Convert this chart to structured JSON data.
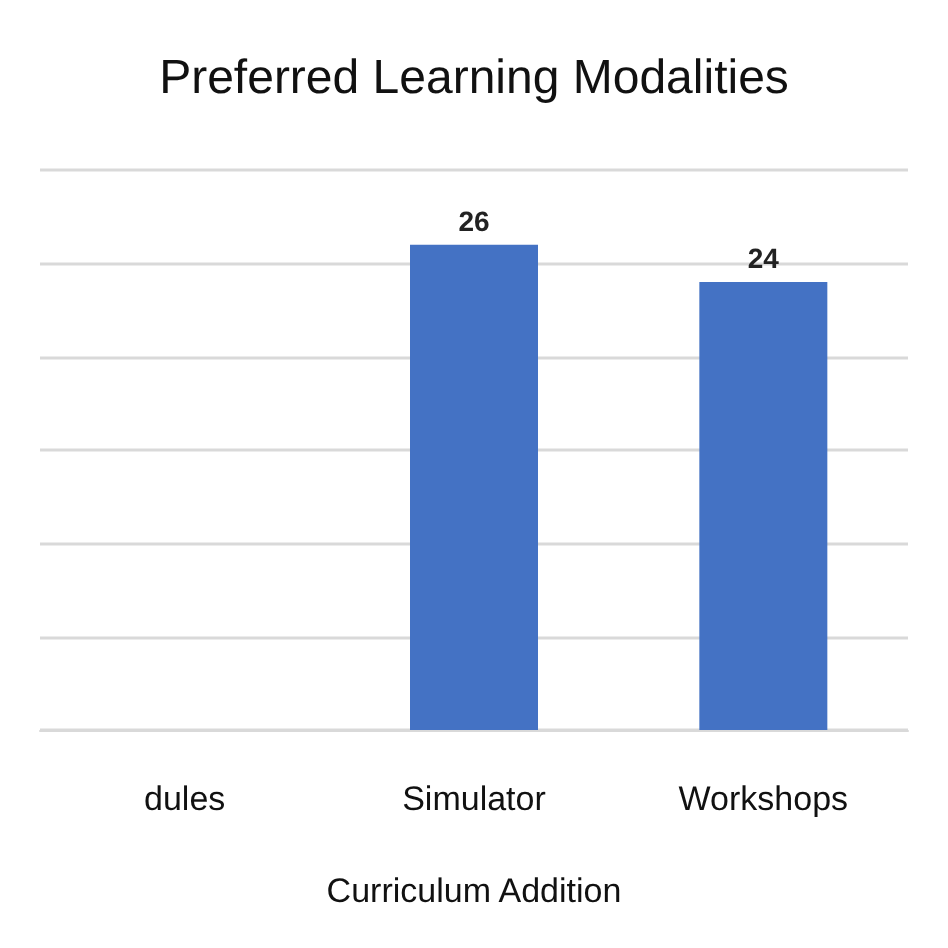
{
  "chart_data": {
    "type": "bar",
    "title": "Preferred Learning Modalities",
    "xlabel": "Curriculum Addition",
    "categories": [
      "dules",
      "Simulator",
      "Workshops"
    ],
    "values": [
      null,
      26,
      24
    ],
    "color": "#4472c4",
    "data_labels": true,
    "ylim": [
      0,
      30
    ],
    "yticks": [
      {
        "value": 0,
        "label": null
      },
      {
        "value": 5,
        "label": null
      },
      {
        "value": 10,
        "label": null
      },
      {
        "value": 15,
        "label": null
      },
      {
        "value": 20,
        "label": null
      },
      {
        "value": 25,
        "label": null
      },
      {
        "value": 30,
        "label": null
      }
    ],
    "grid": "y",
    "tick_labels": "x"
  }
}
